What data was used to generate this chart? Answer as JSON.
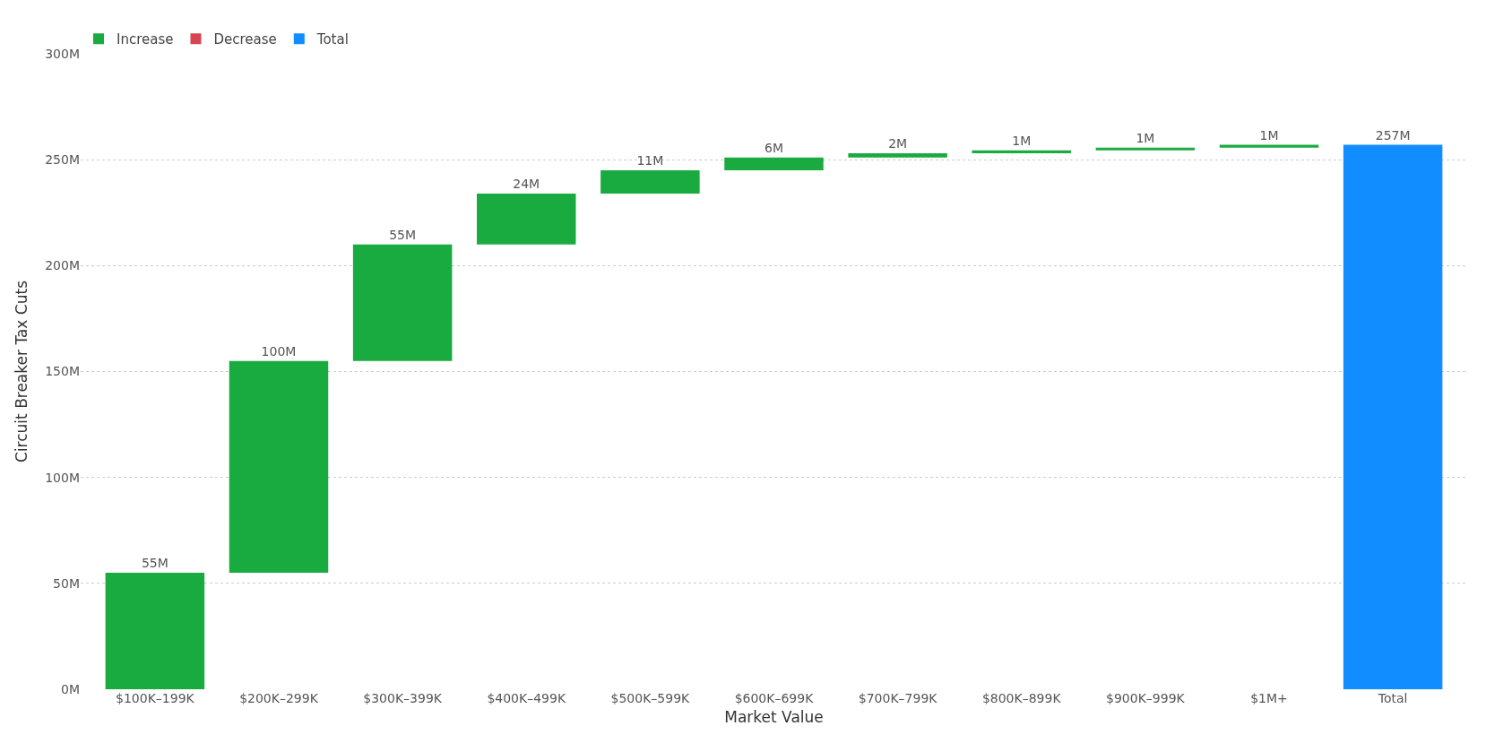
{
  "chart_data": {
    "type": "bar",
    "xlabel": "Market Value",
    "ylabel": "Circuit Breaker Tax Cuts",
    "categories": [
      "$100K–199K",
      "$200K–299K",
      "$300K–399K",
      "$400K–499K",
      "$500K–599K",
      "$600K–699K",
      "$700K–799K",
      "$800K–899K",
      "$900K–999K",
      "$1M+",
      "Total"
    ],
    "series": [
      {
        "name": "Increase",
        "color": "#1aab40",
        "base": [
          0,
          55,
          155,
          210,
          234,
          245,
          251,
          253,
          254.4,
          255.7,
          null
        ],
        "values": [
          55,
          100,
          55,
          24,
          11,
          6,
          2,
          1.4,
          1.3,
          1.3,
          null
        ],
        "value_labels": [
          "55M",
          "100M",
          "55M",
          "24M",
          "11M",
          "6M",
          "2M",
          "1M",
          "1M",
          "1M",
          null
        ]
      },
      {
        "name": "Decrease",
        "color": "#d64550",
        "values": [
          null,
          null,
          null,
          null,
          null,
          null,
          null,
          null,
          null,
          null,
          null
        ]
      },
      {
        "name": "Total",
        "color": "#118dff",
        "values": [
          null,
          null,
          null,
          null,
          null,
          null,
          null,
          null,
          null,
          null,
          257
        ],
        "value_labels": [
          null,
          null,
          null,
          null,
          null,
          null,
          null,
          null,
          null,
          null,
          "257M"
        ]
      }
    ],
    "ylim": [
      0,
      300
    ],
    "yticks": [
      {
        "value": 0,
        "label": "0M"
      },
      {
        "value": 50,
        "label": "50M"
      },
      {
        "value": 100,
        "label": "100M"
      },
      {
        "value": 150,
        "label": "150M"
      },
      {
        "value": 200,
        "label": "200M"
      },
      {
        "value": 250,
        "label": "250M"
      },
      {
        "value": 300,
        "label": "300M"
      }
    ],
    "grid": "y",
    "legend": "top left"
  }
}
